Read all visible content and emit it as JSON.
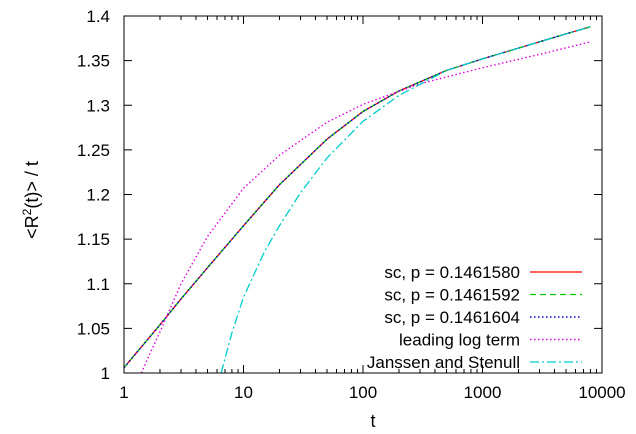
{
  "chart_data": {
    "type": "line",
    "xlabel": "t",
    "ylabel_parts": {
      "base": "<R",
      "sup": "2",
      "rest": "(t)> / t"
    },
    "xscale": "log",
    "xlim": [
      1,
      10000
    ],
    "ylim": [
      1,
      1.4
    ],
    "xticks": [
      1,
      10,
      100,
      1000,
      10000
    ],
    "xtick_labels": [
      "1",
      "10",
      "100",
      "1000",
      "10000"
    ],
    "yticks": [
      1,
      1.05,
      1.1,
      1.15,
      1.2,
      1.25,
      1.3,
      1.35,
      1.4
    ],
    "ytick_labels": [
      "1",
      "1.05",
      "1.1",
      "1.15",
      "1.2",
      "1.25",
      "1.3",
      "1.35",
      "1.4"
    ],
    "grid": false,
    "legend_position": "bottom-right",
    "series": [
      {
        "name": "sc,  p = 0.1461580",
        "color": "#ff0000",
        "dash": "solid",
        "x": [
          1,
          2,
          3,
          5,
          10,
          20,
          50,
          100,
          200,
          500,
          1000,
          2000,
          5000,
          8000
        ],
        "y": [
          1.006,
          1.054,
          1.083,
          1.118,
          1.165,
          1.211,
          1.262,
          1.293,
          1.316,
          1.339,
          1.352,
          1.364,
          1.38,
          1.388
        ]
      },
      {
        "name": "sc,  p = 0.1461592",
        "color": "#00cc00",
        "dash": "dashed",
        "x": [
          1,
          2,
          3,
          5,
          10,
          20,
          50,
          100,
          200,
          500,
          1000,
          2000,
          5000,
          8000
        ],
        "y": [
          1.006,
          1.054,
          1.083,
          1.118,
          1.165,
          1.211,
          1.262,
          1.293,
          1.316,
          1.339,
          1.352,
          1.364,
          1.38,
          1.388
        ]
      },
      {
        "name": "sc,  p = 0.1461604",
        "color": "#0000cc",
        "dash": "dotted",
        "x": [
          1,
          2,
          3,
          5,
          10,
          20,
          50,
          100,
          200,
          500,
          1000,
          2000,
          5000,
          8000
        ],
        "y": [
          1.006,
          1.054,
          1.083,
          1.118,
          1.165,
          1.211,
          1.262,
          1.293,
          1.316,
          1.339,
          1.352,
          1.364,
          1.38,
          1.388
        ]
      },
      {
        "name": "leading log term",
        "color": "#e000e0",
        "dash": "dotted",
        "x": [
          1.4,
          1.6,
          2,
          3,
          5,
          10,
          20,
          50,
          100,
          300,
          1000,
          3000,
          8000
        ],
        "y": [
          1.0,
          1.018,
          1.046,
          1.1,
          1.153,
          1.207,
          1.244,
          1.281,
          1.301,
          1.324,
          1.342,
          1.357,
          1.371
        ]
      },
      {
        "name": "Janssen and Stenull",
        "color": "#00cccc",
        "dash": "dashdot",
        "x": [
          6.5,
          8,
          10,
          15,
          20,
          30,
          50,
          100,
          200,
          500,
          1000,
          2000,
          5000,
          8000
        ],
        "y": [
          1.0,
          1.045,
          1.085,
          1.136,
          1.165,
          1.202,
          1.241,
          1.282,
          1.311,
          1.339,
          1.352,
          1.364,
          1.38,
          1.388
        ]
      }
    ]
  }
}
